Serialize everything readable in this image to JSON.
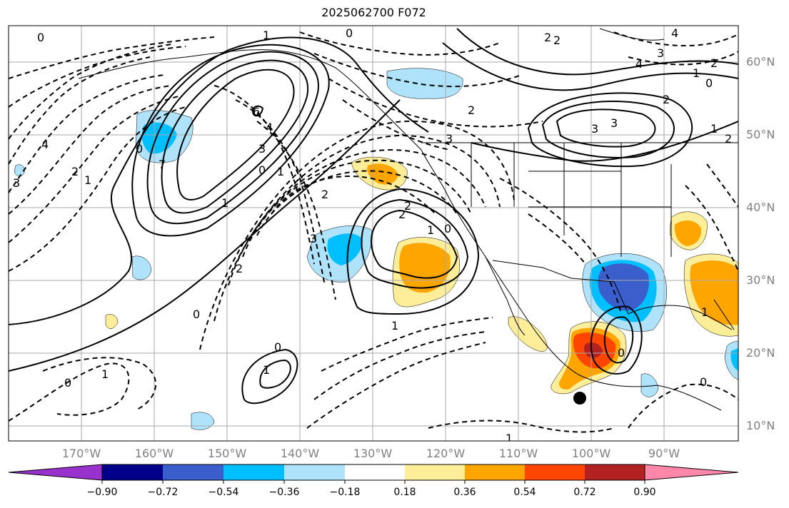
{
  "title": "2025062700 F072",
  "lat_labels": [
    "60°N",
    "50°N",
    "40°N",
    "30°N",
    "20°N",
    "10°N"
  ],
  "lon_labels": [
    "170°W",
    "160°W",
    "150°W",
    "140°W",
    "130°W",
    "120°W",
    "110°W",
    "100°W",
    "90°W"
  ],
  "colorbar": {
    "colors": [
      "#9932cc",
      "#00008b",
      "#3a5fcd",
      "#00bfff",
      "#afe2fb",
      "#ffffff",
      "#ffee99",
      "#ffa500",
      "#ff4500",
      "#b22222",
      "#ff88aa"
    ],
    "tick_labels": [
      "−0.90",
      "−0.72",
      "−0.54",
      "−0.36",
      "−0.18",
      "0.18",
      "0.36",
      "0.54",
      "0.72",
      "0.90"
    ]
  },
  "contour_labels": [
    "0",
    "1",
    "0",
    "4",
    "2",
    "2",
    "3",
    "4",
    "2",
    "1",
    "0",
    "2",
    "3",
    "1",
    "6",
    "4",
    "3",
    "2",
    "1",
    "0",
    "7",
    "3",
    "4",
    "2",
    "1",
    "0",
    "3",
    "2",
    "2",
    "1",
    "1",
    "0",
    "0",
    "0",
    "1",
    "1",
    "2",
    "3",
    "2",
    "0",
    "1",
    "1",
    "0",
    "0",
    "1",
    "2",
    "3"
  ],
  "marker": "filled-circle"
}
